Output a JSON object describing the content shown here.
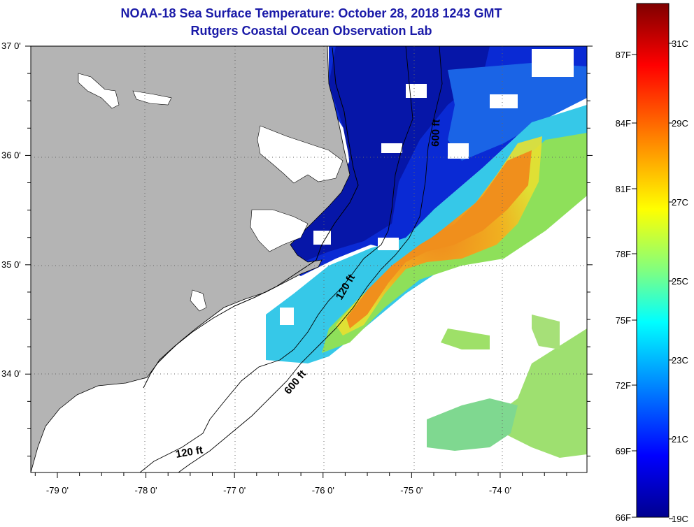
{
  "header": {
    "title": "NOAA-18 Sea Surface Temperature:  October 28, 2018 1243 GMT",
    "subtitle": "Rutgers Coastal Ocean Observation Lab"
  },
  "map": {
    "lon_range": [
      -79.3,
      -73.02
    ],
    "lat_range": [
      33.1,
      37.0
    ],
    "lat_labels": [
      {
        "value": 37.0,
        "text": "37 0'"
      },
      {
        "value": 36.0,
        "text": "36 0'"
      },
      {
        "value": 35.0,
        "text": "35 0'"
      },
      {
        "value": 34.0,
        "text": "34 0'"
      }
    ],
    "lon_labels": [
      {
        "value": -79.0,
        "text": "-79 0'"
      },
      {
        "value": -78.0,
        "text": "-78 0'"
      },
      {
        "value": -77.0,
        "text": "-77 0'"
      },
      {
        "value": -76.0,
        "text": "-76 0'"
      },
      {
        "value": -75.0,
        "text": "-75 0'"
      },
      {
        "value": -74.0,
        "text": "-74 0'"
      }
    ],
    "depth_labels": {
      "shelf_north": "600 ft",
      "shelf_mid": "120 ft",
      "shelf_south": "600 ft",
      "nearshore_south": "120 ft"
    },
    "land_color": "#b4b4b4",
    "no_data_color": "#ffffff"
  },
  "colorbar": {
    "fahrenheit_labels": [
      "87F",
      "84F",
      "81F",
      "78F",
      "75F",
      "72F",
      "69F",
      "66F"
    ],
    "celsius_labels": [
      "31C",
      "29C",
      "27C",
      "25C",
      "23C",
      "21C",
      "19C"
    ],
    "colors": [
      "#7f0000",
      "#ff0000",
      "#ff8000",
      "#ffff00",
      "#80ff80",
      "#00ffff",
      "#0080ff",
      "#0000ff",
      "#00008f"
    ]
  }
}
